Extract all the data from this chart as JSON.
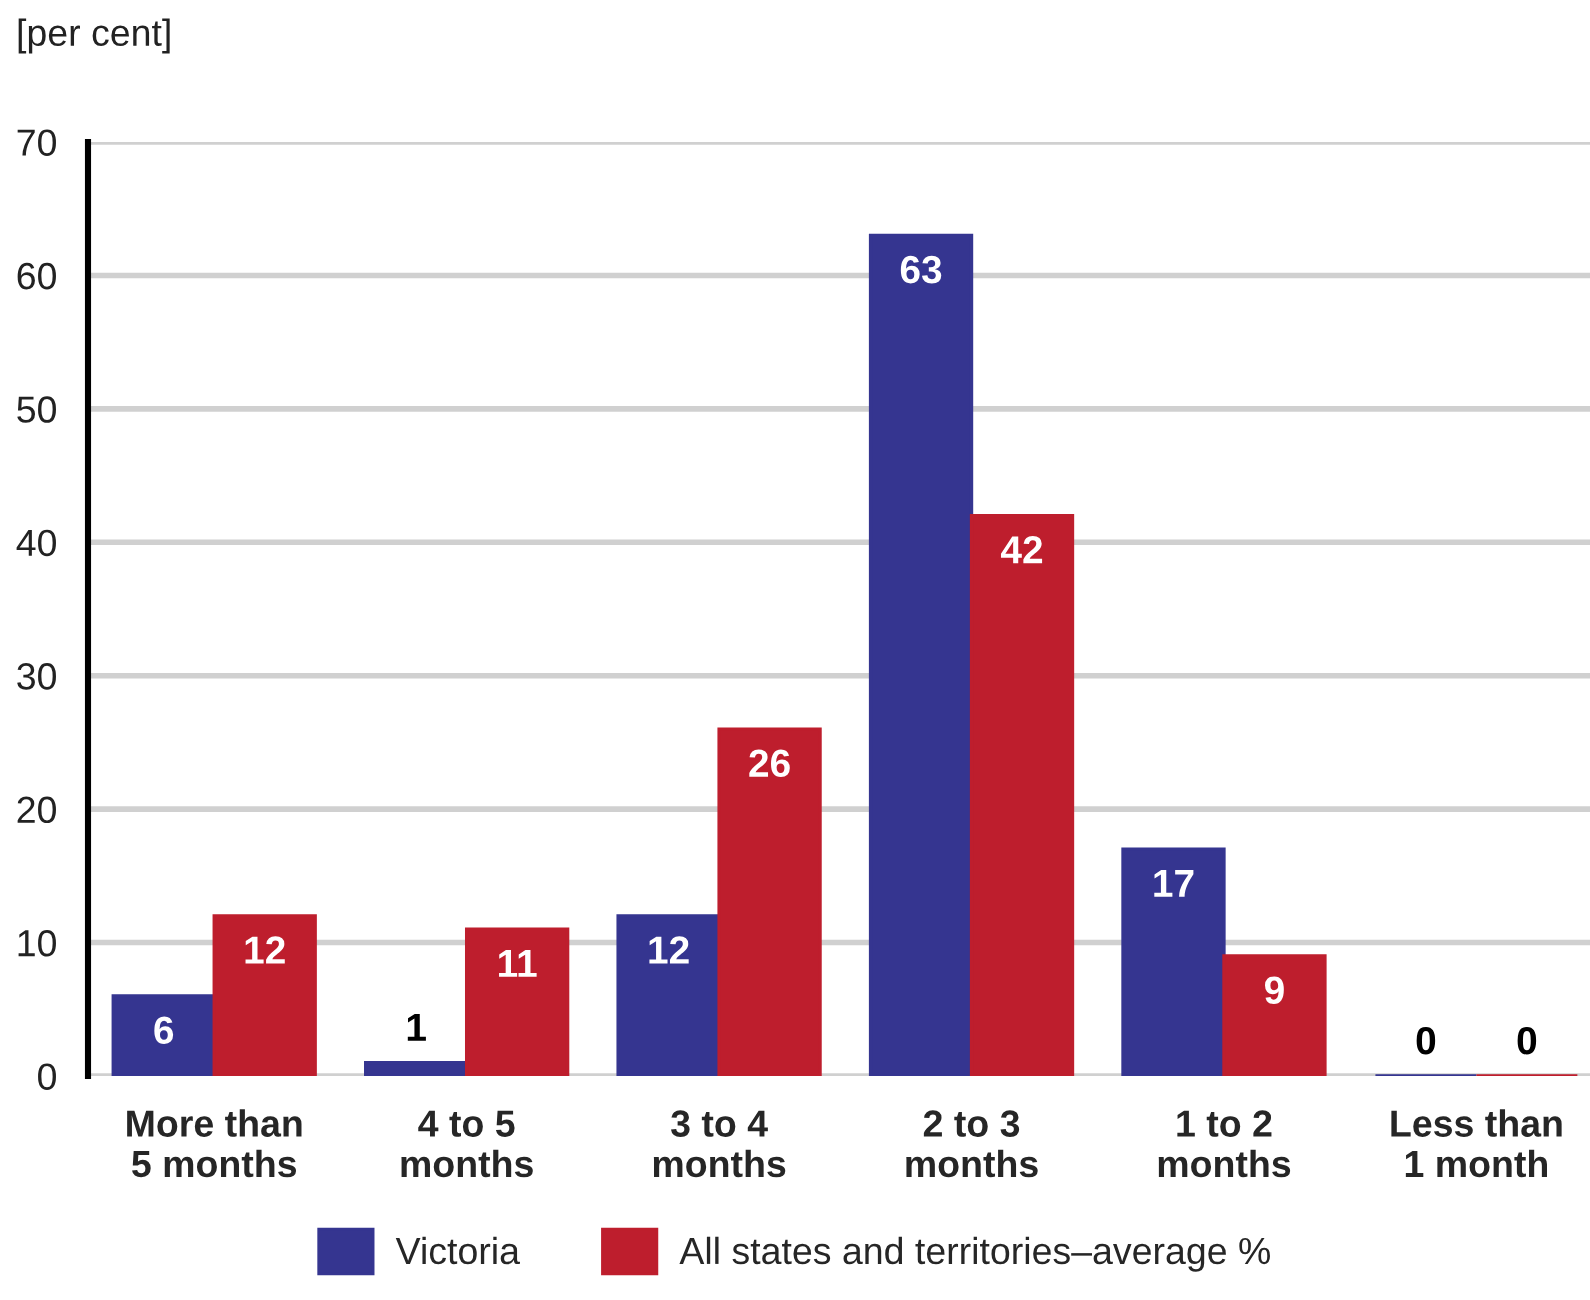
{
  "chart_data": {
    "type": "bar",
    "ylabel": "[per cent]",
    "categories": [
      "More than\n5 months",
      "4 to 5\nmonths",
      "3 to 4\nmonths",
      "2 to 3\nmonths",
      "1 to 2\nmonths",
      "Less than\n1 month"
    ],
    "series": [
      {
        "name": "Victoria",
        "color": "#353590",
        "values": [
          6,
          1,
          12,
          63,
          17,
          0
        ]
      },
      {
        "name": "All states and territories–average %",
        "color": "#be1e2d",
        "values": [
          12,
          11,
          26,
          42,
          9,
          0
        ]
      }
    ],
    "ylim": [
      0,
      70
    ],
    "yticks": [
      0,
      10,
      20,
      30,
      40,
      50,
      60,
      70
    ],
    "grid": "y",
    "legend": "bottom",
    "data_labels": true
  }
}
